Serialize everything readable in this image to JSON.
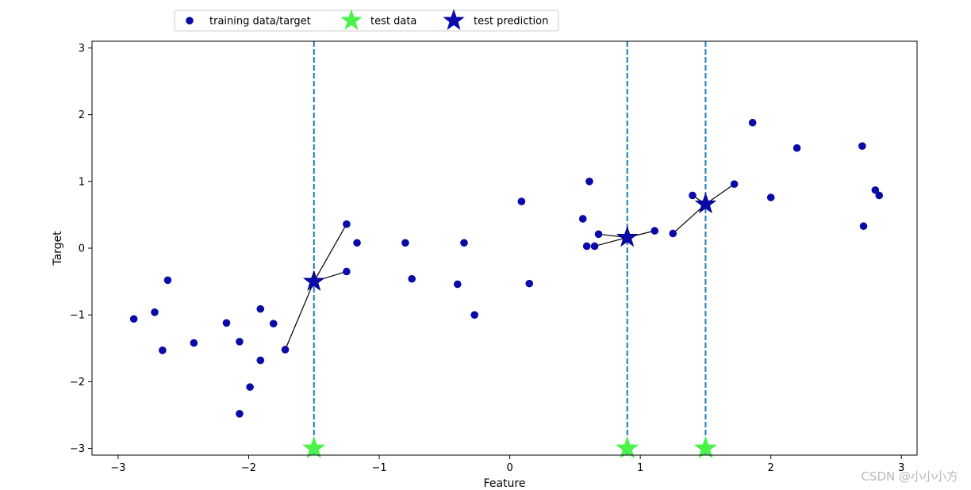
{
  "chart_data": {
    "type": "scatter",
    "xlabel": "Feature",
    "ylabel": "Target",
    "xlim": [
      -3.2,
      3.12
    ],
    "ylim": [
      -3.1,
      3.1
    ],
    "xticks": [
      -3,
      -2,
      -1,
      0,
      1,
      2,
      3
    ],
    "yticks": [
      -3,
      -2,
      -1,
      0,
      1,
      2,
      3
    ],
    "grid": false,
    "legend_position": "top-center-outside",
    "legend": [
      {
        "label": "training data/target",
        "marker": "circle",
        "color": "#0a0aa8"
      },
      {
        "label": "test data",
        "marker": "star",
        "color": "#4af24a"
      },
      {
        "label": "test prediction",
        "marker": "star",
        "color": "#0a0aa8"
      }
    ],
    "training": {
      "name": "training data/target",
      "color": "#0a0aa8",
      "points": [
        [
          -2.88,
          -1.06
        ],
        [
          -2.72,
          -0.96
        ],
        [
          -2.66,
          -1.53
        ],
        [
          -2.62,
          -0.48
        ],
        [
          -2.42,
          -1.42
        ],
        [
          -2.17,
          -1.12
        ],
        [
          -2.07,
          -1.4
        ],
        [
          -2.07,
          -2.48
        ],
        [
          -1.99,
          -2.08
        ],
        [
          -1.91,
          -0.91
        ],
        [
          -1.91,
          -1.68
        ],
        [
          -1.81,
          -1.13
        ],
        [
          -1.72,
          -1.52
        ],
        [
          -1.25,
          0.36
        ],
        [
          -1.25,
          -0.35
        ],
        [
          -1.17,
          0.08
        ],
        [
          -0.8,
          0.08
        ],
        [
          -0.75,
          -0.46
        ],
        [
          -0.4,
          -0.54
        ],
        [
          -0.35,
          0.08
        ],
        [
          -0.27,
          -1.0
        ],
        [
          0.09,
          0.7
        ],
        [
          0.15,
          -0.53
        ],
        [
          0.56,
          0.44
        ],
        [
          0.59,
          0.03
        ],
        [
          0.61,
          1.0
        ],
        [
          0.65,
          0.03
        ],
        [
          0.68,
          0.21
        ],
        [
          1.11,
          0.26
        ],
        [
          1.25,
          0.22
        ],
        [
          1.4,
          0.79
        ],
        [
          1.72,
          0.96
        ],
        [
          1.86,
          1.88
        ],
        [
          2.0,
          0.76
        ],
        [
          2.2,
          1.5
        ],
        [
          2.7,
          1.53
        ],
        [
          2.71,
          0.33
        ],
        [
          2.8,
          0.87
        ],
        [
          2.83,
          0.79
        ]
      ]
    },
    "test": {
      "name": "test data",
      "color": "#4af24a",
      "x": [
        -1.5,
        0.9,
        1.5
      ],
      "y": -3
    },
    "predictions": {
      "name": "test prediction",
      "color": "#0a0aa8",
      "points": [
        [
          -1.5,
          -0.5
        ],
        [
          0.9,
          0.16
        ],
        [
          1.5,
          0.66
        ]
      ]
    },
    "neighbors": [
      [
        [
          -1.72,
          -1.52
        ],
        [
          -1.25,
          0.36
        ],
        [
          -1.25,
          -0.35
        ]
      ],
      [
        [
          0.65,
          0.03
        ],
        [
          0.68,
          0.21
        ],
        [
          1.11,
          0.26
        ]
      ],
      [
        [
          1.25,
          0.22
        ],
        [
          1.4,
          0.79
        ],
        [
          1.72,
          0.96
        ]
      ]
    ],
    "vline_color": "#1f77b4"
  },
  "watermark": "CSDN @小小小方"
}
